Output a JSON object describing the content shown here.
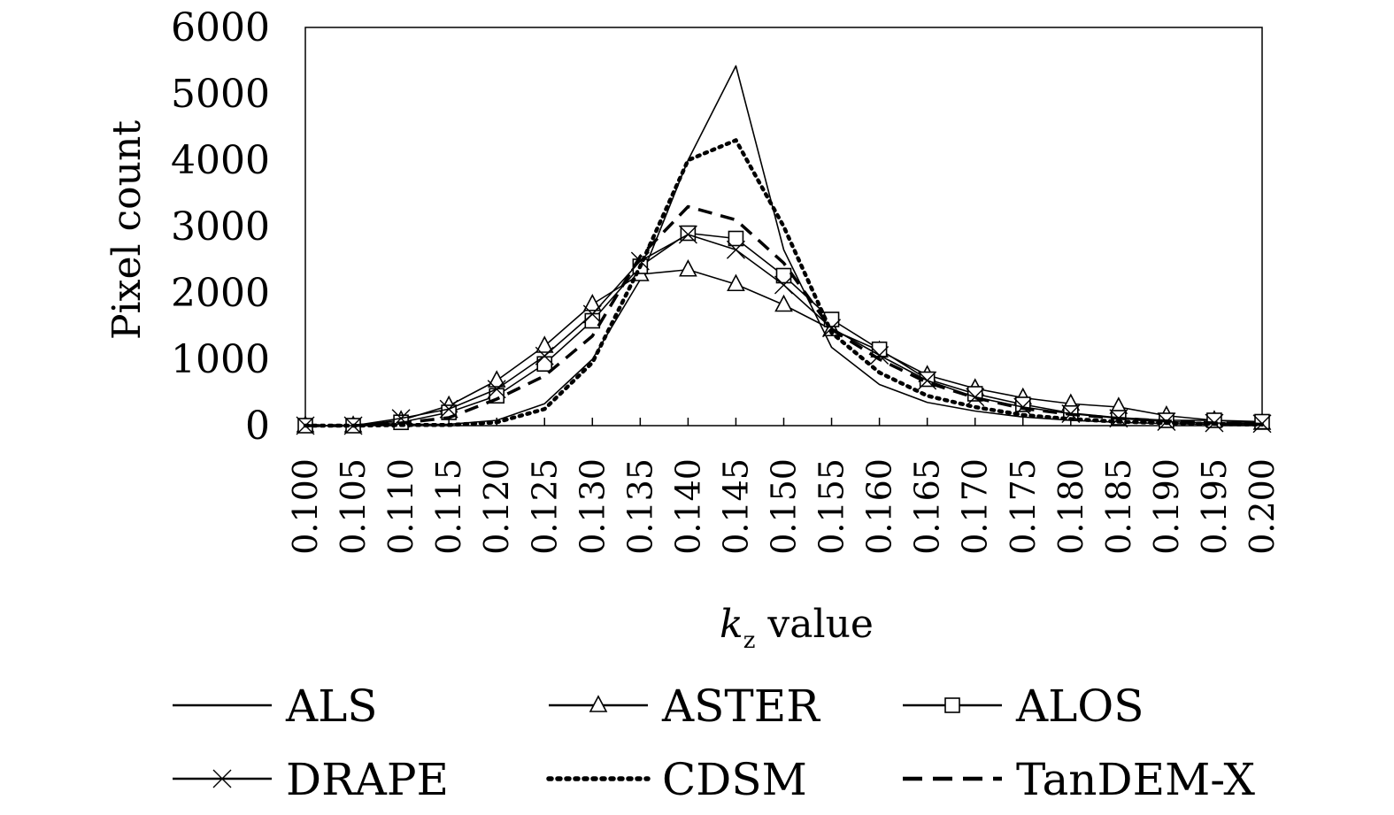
{
  "chart_data": {
    "type": "line",
    "xlabel_main": "k",
    "xlabel_sub": "z",
    "xlabel_rest": " value",
    "ylabel": "Pixel count",
    "ylim": [
      0,
      6000
    ],
    "yticks": [
      "0",
      "1000",
      "2000",
      "3000",
      "4000",
      "5000",
      "6000"
    ],
    "x": [
      "0.100",
      "0.105",
      "0.110",
      "0.115",
      "0.120",
      "0.125",
      "0.130",
      "0.135",
      "0.140",
      "0.145",
      "0.150",
      "0.155",
      "0.160",
      "0.165",
      "0.170",
      "0.175",
      "0.180",
      "0.185",
      "0.190",
      "0.195",
      "0.200"
    ],
    "grid": false,
    "legend_position": "bottom",
    "series": [
      {
        "name": "ALS",
        "style": "solid",
        "marker": "none",
        "values": [
          0,
          0,
          20,
          20,
          80,
          330,
          1000,
          2200,
          4000,
          5420,
          2650,
          1180,
          620,
          350,
          220,
          130,
          80,
          50,
          30,
          20,
          10
        ]
      },
      {
        "name": "ASTER",
        "style": "solid",
        "marker": "triangle",
        "values": [
          0,
          0,
          80,
          300,
          680,
          1200,
          1830,
          2280,
          2350,
          2130,
          1820,
          1450,
          1130,
          760,
          560,
          420,
          330,
          280,
          150,
          80,
          40
        ]
      },
      {
        "name": "ALOS",
        "style": "solid",
        "marker": "square",
        "values": [
          0,
          0,
          50,
          200,
          450,
          930,
          1580,
          2400,
          2900,
          2820,
          2260,
          1600,
          1150,
          700,
          480,
          320,
          190,
          120,
          80,
          80,
          60
        ]
      },
      {
        "name": "DRAPE",
        "style": "solid",
        "marker": "x",
        "values": [
          0,
          0,
          110,
          250,
          550,
          1050,
          1680,
          2480,
          2880,
          2650,
          2120,
          1470,
          1060,
          680,
          430,
          280,
          180,
          110,
          60,
          40,
          30
        ]
      },
      {
        "name": "CDSM",
        "style": "dotted",
        "marker": "none",
        "values": [
          0,
          0,
          10,
          10,
          50,
          250,
          950,
          2400,
          4000,
          4300,
          3000,
          1400,
          800,
          450,
          280,
          160,
          100,
          60,
          40,
          25,
          15
        ]
      },
      {
        "name": "TanDEM-X",
        "style": "dashed",
        "marker": "none",
        "values": [
          0,
          0,
          40,
          120,
          400,
          750,
          1350,
          2550,
          3300,
          3100,
          2450,
          1450,
          1000,
          650,
          420,
          260,
          170,
          110,
          70,
          40,
          20
        ]
      }
    ]
  }
}
